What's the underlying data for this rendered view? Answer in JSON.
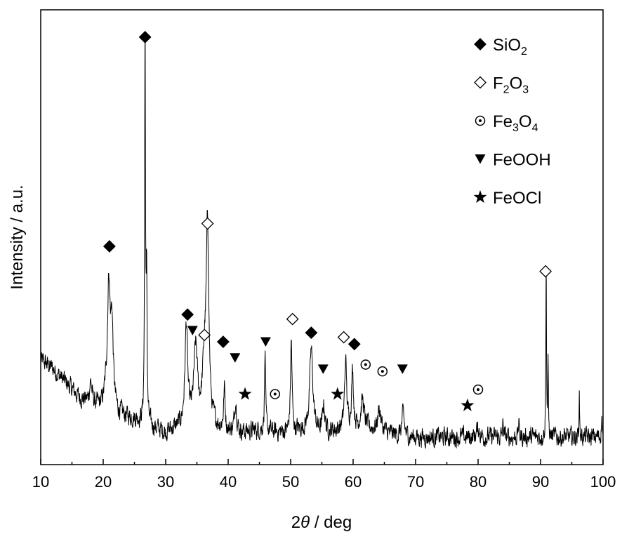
{
  "chart_data": {
    "type": "line",
    "title": "",
    "xlabel_prefix": "2",
    "xlabel_theta": "θ",
    "xlabel_suffix": " / deg",
    "ylabel": "Intensity / a.u.",
    "xlim": [
      10,
      100
    ],
    "ylim": [
      0,
      100
    ],
    "y_tick_labels": false,
    "grid": false,
    "legend_position": "top-right",
    "x_ticks": [
      10,
      20,
      30,
      40,
      50,
      60,
      70,
      80,
      90,
      100
    ],
    "x_tick_labels": [
      "10",
      "20",
      "30",
      "40",
      "50",
      "60",
      "70",
      "80",
      "90",
      "100"
    ],
    "legend": [
      {
        "marker": "filled-diamond",
        "label_parts": [
          {
            "t": "SiO",
            "sub": false
          },
          {
            "t": "2",
            "sub": true
          }
        ]
      },
      {
        "marker": "open-diamond",
        "label_parts": [
          {
            "t": "F",
            "sub": false
          },
          {
            "t": "2",
            "sub": true
          },
          {
            "t": "O",
            "sub": false
          },
          {
            "t": "3",
            "sub": true
          }
        ]
      },
      {
        "marker": "circled-dot",
        "label_parts": [
          {
            "t": "Fe",
            "sub": false
          },
          {
            "t": "3",
            "sub": true
          },
          {
            "t": "O",
            "sub": false
          },
          {
            "t": "4",
            "sub": true
          }
        ]
      },
      {
        "marker": "filled-triangle-down",
        "label_parts": [
          {
            "t": "FeOOH",
            "sub": false
          }
        ]
      },
      {
        "marker": "filled-star",
        "label_parts": [
          {
            "t": "FeOCl",
            "sub": false
          }
        ]
      }
    ],
    "baseline": [
      [
        10,
        23
      ],
      [
        12,
        21
      ],
      [
        14,
        18
      ],
      [
        16,
        15
      ],
      [
        18,
        13
      ],
      [
        20,
        12
      ],
      [
        22,
        11
      ],
      [
        25,
        10
      ],
      [
        28,
        8
      ],
      [
        30,
        7
      ],
      [
        32,
        8
      ],
      [
        35,
        9
      ],
      [
        38,
        8
      ],
      [
        40,
        7
      ],
      [
        42,
        7
      ],
      [
        45,
        7.5
      ],
      [
        48,
        7
      ],
      [
        50,
        7
      ],
      [
        52,
        7.5
      ],
      [
        55,
        7
      ],
      [
        58,
        7.5
      ],
      [
        60,
        8
      ],
      [
        62,
        8
      ],
      [
        65,
        7
      ],
      [
        68,
        6
      ],
      [
        70,
        6
      ],
      [
        72,
        6
      ],
      [
        75,
        6
      ],
      [
        78,
        6
      ],
      [
        80,
        6
      ],
      [
        82,
        6
      ],
      [
        85,
        6
      ],
      [
        88,
        6
      ],
      [
        90,
        6
      ],
      [
        92,
        6
      ],
      [
        95,
        6
      ],
      [
        98,
        6
      ],
      [
        100,
        6
      ]
    ],
    "peaks": [
      {
        "x": 18.0,
        "h": 5,
        "w": 0.25
      },
      {
        "x": 20.5,
        "h": 3,
        "w": 0.4
      },
      {
        "x": 20.9,
        "h": 26,
        "w": 0.25
      },
      {
        "x": 21.4,
        "h": 18,
        "w": 0.25
      },
      {
        "x": 26.7,
        "h": 87,
        "w": 0.08
      },
      {
        "x": 26.95,
        "h": 32,
        "w": 0.08
      },
      {
        "x": 33.3,
        "h": 22,
        "w": 0.25
      },
      {
        "x": 34.8,
        "h": 16,
        "w": 0.35
      },
      {
        "x": 36.2,
        "h": 12,
        "w": 0.35
      },
      {
        "x": 36.7,
        "h": 42,
        "w": 0.25
      },
      {
        "x": 39.4,
        "h": 9,
        "w": 0.15
      },
      {
        "x": 41.2,
        "h": 7,
        "w": 0.2
      },
      {
        "x": 45.9,
        "h": 17,
        "w": 0.1
      },
      {
        "x": 50.1,
        "h": 20,
        "w": 0.15
      },
      {
        "x": 53.3,
        "h": 18,
        "w": 0.3
      },
      {
        "x": 55.3,
        "h": 6,
        "w": 0.2
      },
      {
        "x": 58.8,
        "h": 15,
        "w": 0.2
      },
      {
        "x": 59.9,
        "h": 12,
        "w": 0.2
      },
      {
        "x": 61.5,
        "h": 6,
        "w": 0.3
      },
      {
        "x": 64.2,
        "h": 5,
        "w": 0.3
      },
      {
        "x": 68.0,
        "h": 5,
        "w": 0.25
      },
      {
        "x": 80.0,
        "h": 2,
        "w": 0.3
      },
      {
        "x": 84.0,
        "h": 3,
        "w": 0.1
      },
      {
        "x": 86.5,
        "h": 3,
        "w": 0.1
      },
      {
        "x": 90.9,
        "h": 39,
        "w": 0.06
      },
      {
        "x": 91.2,
        "h": 15,
        "w": 0.06
      },
      {
        "x": 96.2,
        "h": 9,
        "w": 0.06
      },
      {
        "x": 99.8,
        "h": 4,
        "w": 0.1
      }
    ],
    "noise_amplitude": 2.0,
    "sample_step": 0.04,
    "phase_markers": [
      {
        "phase": "SiO2",
        "marker": "filled-diamond",
        "x": 21.0,
        "y": 48
      },
      {
        "phase": "SiO2",
        "marker": "filled-diamond",
        "x": 26.7,
        "y": 94
      },
      {
        "phase": "SiO2",
        "marker": "filled-diamond",
        "x": 33.5,
        "y": 33
      },
      {
        "phase": "SiO2",
        "marker": "filled-diamond",
        "x": 39.2,
        "y": 27
      },
      {
        "phase": "SiO2",
        "marker": "filled-diamond",
        "x": 53.3,
        "y": 29
      },
      {
        "phase": "SiO2",
        "marker": "filled-diamond",
        "x": 60.2,
        "y": 26.5
      },
      {
        "phase": "F2O3",
        "marker": "open-diamond",
        "x": 36.7,
        "y": 53
      },
      {
        "phase": "F2O3",
        "marker": "open-diamond",
        "x": 36.2,
        "y": 28.5
      },
      {
        "phase": "F2O3",
        "marker": "open-diamond",
        "x": 50.3,
        "y": 32
      },
      {
        "phase": "F2O3",
        "marker": "open-diamond",
        "x": 58.5,
        "y": 28
      },
      {
        "phase": "F2O3",
        "marker": "open-diamond",
        "x": 90.8,
        "y": 42.5
      },
      {
        "phase": "Fe3O4",
        "marker": "circled-dot",
        "x": 47.5,
        "y": 15.5
      },
      {
        "phase": "Fe3O4",
        "marker": "circled-dot",
        "x": 62.0,
        "y": 22
      },
      {
        "phase": "Fe3O4",
        "marker": "circled-dot",
        "x": 64.7,
        "y": 20.5
      },
      {
        "phase": "Fe3O4",
        "marker": "circled-dot",
        "x": 80.0,
        "y": 16.5
      },
      {
        "phase": "FeOOH",
        "marker": "filled-triangle-down",
        "x": 34.3,
        "y": 29.5
      },
      {
        "phase": "FeOOH",
        "marker": "filled-triangle-down",
        "x": 41.1,
        "y": 23.5
      },
      {
        "phase": "FeOOH",
        "marker": "filled-triangle-down",
        "x": 46.0,
        "y": 27
      },
      {
        "phase": "FeOOH",
        "marker": "filled-triangle-down",
        "x": 55.2,
        "y": 21
      },
      {
        "phase": "FeOOH",
        "marker": "filled-triangle-down",
        "x": 67.9,
        "y": 21
      },
      {
        "phase": "FeOCl",
        "marker": "filled-star",
        "x": 42.7,
        "y": 15.5
      },
      {
        "phase": "FeOCl",
        "marker": "filled-star",
        "x": 57.5,
        "y": 15.5
      },
      {
        "phase": "FeOCl",
        "marker": "filled-star",
        "x": 78.3,
        "y": 13
      }
    ],
    "colors": {
      "line": "#000000",
      "axis": "#000000",
      "background": "#ffffff"
    }
  }
}
